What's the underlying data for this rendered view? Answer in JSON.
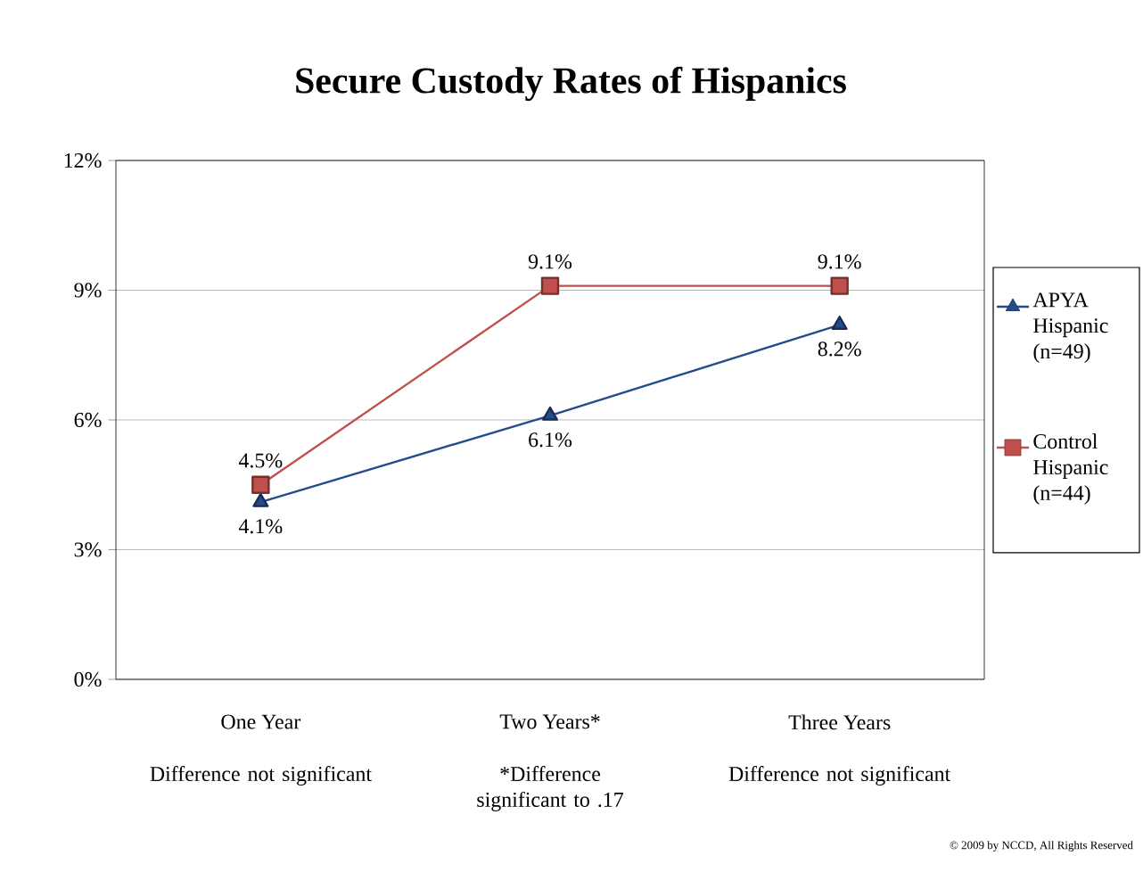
{
  "chart_data": {
    "type": "line",
    "title": "Secure Custody Rates of Hispanics",
    "categories": [
      "One Year",
      "Two Years*",
      "Three Years"
    ],
    "series": [
      {
        "name": "APYA Hispanic (n=49)",
        "color": "#254b8a",
        "marker": "triangle",
        "values": [
          4.1,
          6.1,
          8.2
        ],
        "value_labels": [
          "4.1%",
          "6.1%",
          "8.2%"
        ]
      },
      {
        "name": "Control Hispanic (n=44)",
        "color": "#c0504d",
        "marker": "square",
        "values": [
          4.5,
          9.1,
          9.1
        ],
        "value_labels": [
          "4.5%",
          "9.1%",
          "9.1%"
        ]
      }
    ],
    "ylim": [
      0,
      12
    ],
    "yticks": [
      {
        "value": 0,
        "label": "0%"
      },
      {
        "value": 3,
        "label": "3%"
      },
      {
        "value": 6,
        "label": "6%"
      },
      {
        "value": 9,
        "label": "9%"
      },
      {
        "value": 12,
        "label": "12%"
      }
    ],
    "grid": "y",
    "legend": "right",
    "line_style": "solid",
    "annotations": [
      "Difference not significant",
      "*Difference significant to .17",
      "Difference not significant",
      "© 2009 by NCCD, All Rights Reserved"
    ]
  }
}
